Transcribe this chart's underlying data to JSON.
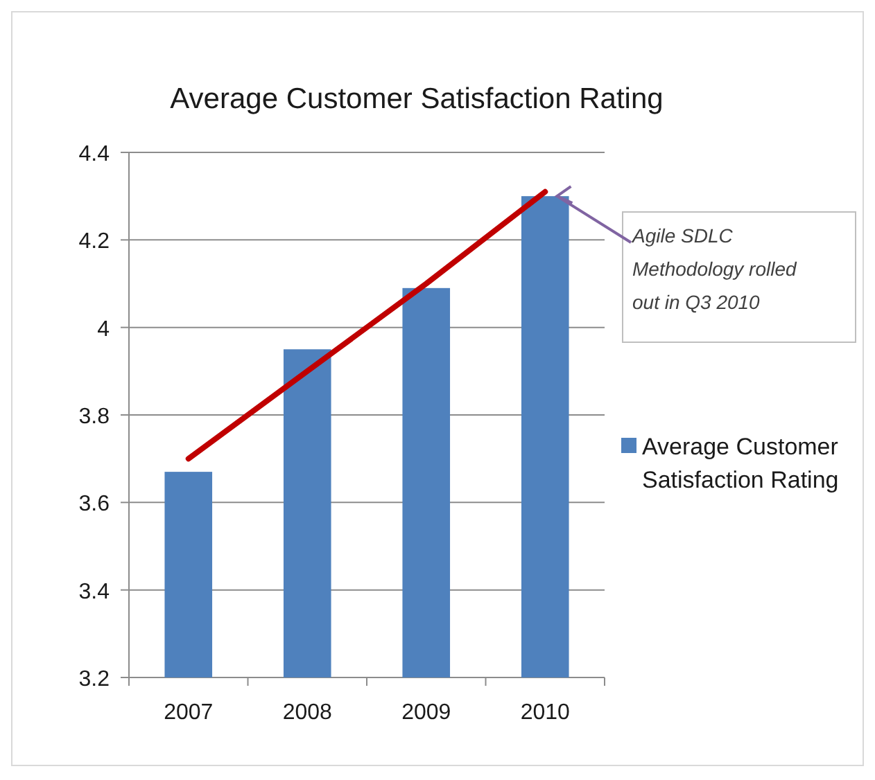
{
  "chart_data": {
    "type": "bar",
    "title": "Average Customer Satisfaction Rating",
    "categories": [
      "2007",
      "2008",
      "2009",
      "2010"
    ],
    "series": [
      {
        "name": "Average Customer Satisfaction Rating",
        "color": "#4f81bd",
        "values": [
          3.67,
          3.95,
          4.09,
          4.3
        ]
      },
      {
        "type": "line",
        "color": "#c00000",
        "values": [
          3.7,
          3.9,
          4.1,
          4.31
        ]
      }
    ],
    "ylim": [
      3.2,
      4.4
    ],
    "yticks": [
      3.2,
      3.4,
      3.6,
      {
        "value": 3.8,
        "label": "3.8"
      },
      {
        "value": 4.0,
        "label": "4"
      },
      4.2,
      4.4
    ],
    "grid": "y",
    "legend": "right",
    "annotations": [
      {
        "text": "Agile SDLC Methodology rolled out in Q3 2010",
        "x": "2010",
        "y": 4.3
      }
    ]
  }
}
